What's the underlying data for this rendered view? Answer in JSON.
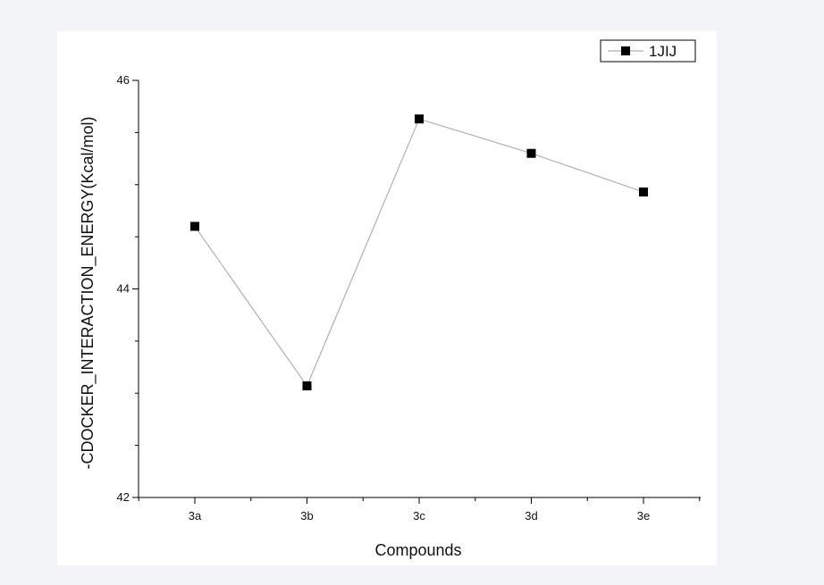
{
  "colors": {
    "page_background": "#f3f4f8",
    "plot_background": "#ffffff",
    "axis": "#000000",
    "series_line": "#b0b0b0",
    "marker": "#000000"
  },
  "chart_data": {
    "type": "line",
    "title": "",
    "xlabel": "Compounds",
    "ylabel": "-CDOCKER_INTERACTION_ENERGY(Kcal/mol)",
    "categories": [
      "3a",
      "3b",
      "3c",
      "3d",
      "3e"
    ],
    "ylim": [
      42,
      46
    ],
    "y_major_ticks": [
      42,
      44,
      46
    ],
    "y_minor_step": 0.5,
    "grid": false,
    "legend_position": "top-right",
    "series": [
      {
        "name": "1JIJ",
        "marker": "square",
        "values": [
          44.6,
          43.07,
          45.63,
          45.3,
          44.93
        ]
      }
    ]
  }
}
